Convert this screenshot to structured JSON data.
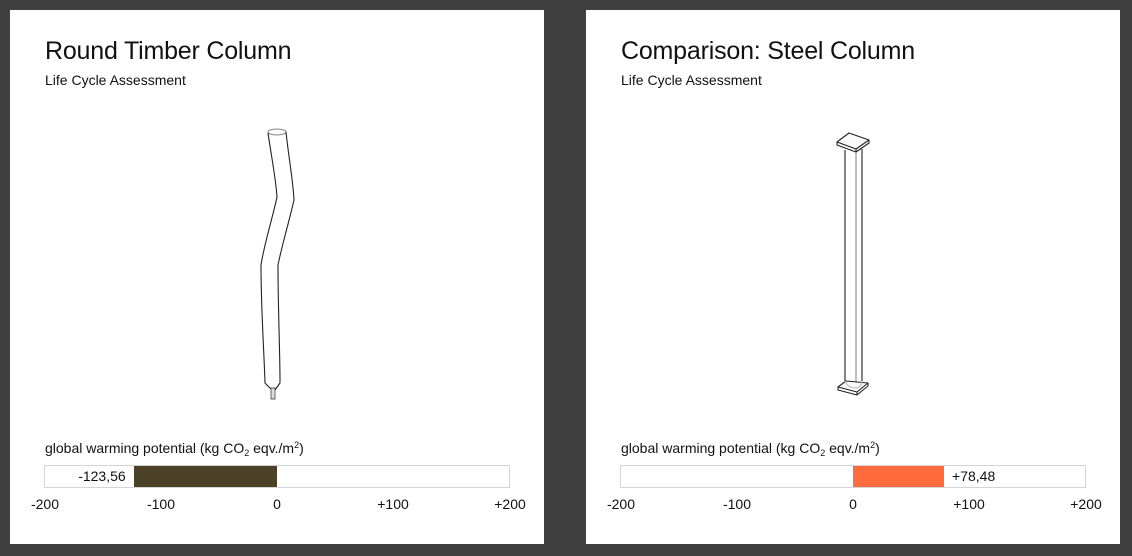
{
  "panels": [
    {
      "title": "Round Timber Column",
      "subtitle": "Life Cycle Assessment",
      "drawing": "round-timber-column",
      "gauge": {
        "label_prefix": "global warming potential (kg CO",
        "label_sub": "2",
        "label_mid": " eqv./m",
        "label_sup": "2",
        "label_suffix": ")",
        "value": -123.56,
        "value_text": "-123,56",
        "fill_color": "#4a4126",
        "min": -200,
        "max": 200
      },
      "ticks": [
        "-200",
        "-100",
        "0",
        "+100",
        "+200"
      ]
    },
    {
      "title": "Comparison: Steel Column",
      "subtitle": "Life Cycle Assessment",
      "drawing": "steel-column",
      "gauge": {
        "label_prefix": "global warming potential (kg CO",
        "label_sub": "2",
        "label_mid": " eqv./m",
        "label_sup": "2",
        "label_suffix": ")",
        "value": 78.48,
        "value_text": "+78,48",
        "fill_color": "#ff6b3d",
        "min": -200,
        "max": 200
      },
      "ticks": [
        "-200",
        "-100",
        "0",
        "+100",
        "+200"
      ]
    }
  ],
  "chart_data": [
    {
      "type": "bar",
      "title": "Round Timber Column",
      "xlabel": "global warming potential (kg CO2 eqv./m2)",
      "categories": [
        "Round Timber Column"
      ],
      "values": [
        -123.56
      ],
      "xlim": [
        -200,
        200
      ],
      "tick_labels": [
        "-200",
        "-100",
        "0",
        "+100",
        "+200"
      ]
    },
    {
      "type": "bar",
      "title": "Comparison: Steel Column",
      "xlabel": "global warming potential (kg CO2 eqv./m2)",
      "categories": [
        "Steel Column"
      ],
      "values": [
        78.48
      ],
      "xlim": [
        -200,
        200
      ],
      "tick_labels": [
        "-200",
        "-100",
        "0",
        "+100",
        "+200"
      ]
    }
  ]
}
